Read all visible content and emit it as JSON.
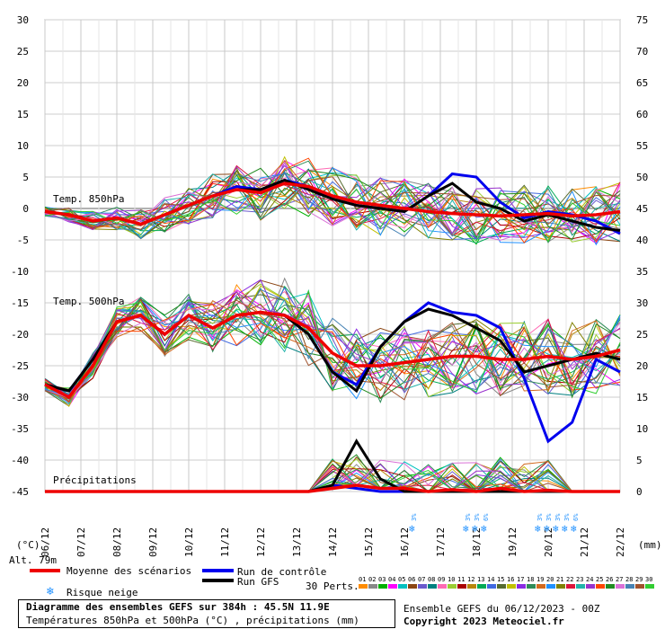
{
  "chart_data": {
    "type": "line",
    "left_axis": {
      "ticks": [
        "30",
        "25",
        "20",
        "15",
        "10",
        "5",
        "0",
        "-5",
        "-10",
        "-15",
        "-20",
        "-25",
        "-30",
        "-35",
        "-40",
        "-45"
      ],
      "ylim": [
        -45,
        30
      ],
      "unit_label": "(°C)"
    },
    "right_axis": {
      "ticks": [
        "75",
        "70",
        "65",
        "60",
        "55",
        "50",
        "45",
        "40",
        "35",
        "30",
        "25",
        "20",
        "15",
        "10",
        "5",
        "0"
      ],
      "ylim": [
        0,
        75
      ],
      "unit_label": "(mm)"
    },
    "x_ticks": [
      "06/12",
      "07/12",
      "08/12",
      "09/12",
      "10/12",
      "11/12",
      "12/12",
      "13/12",
      "14/12",
      "15/12",
      "16/12",
      "17/12",
      "18/12",
      "19/12",
      "20/12",
      "21/12",
      "22/12"
    ],
    "alt_label": "Alt. 79m",
    "section_labels": {
      "t850": "Temp. 850hPa",
      "t500": "Temp. 500hPa",
      "precip": "Précipitations"
    },
    "grid": true,
    "series": [
      {
        "name": "Moyenne des scénarios",
        "color": "#ee0000",
        "t850": [
          -0.5,
          -1,
          -2,
          -1.5,
          -2.5,
          -1,
          0.5,
          2,
          3,
          2.5,
          4,
          3.5,
          2,
          1,
          0.5,
          0,
          -0.5,
          -0.8,
          -1,
          -1.2,
          -1,
          -0.8,
          -1.2,
          -1,
          -0.5
        ],
        "t500": [
          -28,
          -30,
          -25,
          -18,
          -17,
          -20,
          -17,
          -19,
          -17,
          -16.5,
          -17,
          -19,
          -23,
          -25,
          -25,
          -24.5,
          -24,
          -23.5,
          -23.5,
          -24,
          -24,
          -23.5,
          -24,
          -23.5,
          -22.5
        ],
        "precip": [
          0,
          0,
          0,
          0,
          0,
          0,
          0,
          0,
          0,
          0,
          0,
          0,
          0.5,
          1,
          0.5,
          0.5,
          0,
          0.3,
          0,
          0.5,
          0,
          0.2,
          0,
          0,
          0
        ]
      },
      {
        "name": "Run de contrôle",
        "color": "#0000ee",
        "t850": [
          -0.5,
          -1,
          -2,
          -1.5,
          -2.5,
          -1,
          0.5,
          2,
          3.5,
          3,
          4.5,
          3.5,
          1.5,
          0.5,
          0,
          -0.5,
          2,
          5.5,
          5,
          1,
          -1.5,
          -0.5,
          -1,
          -2,
          -4
        ],
        "t500": [
          -28,
          -29,
          -24,
          -18,
          -17,
          -20,
          -17,
          -19,
          -17,
          -16.5,
          -17,
          -20,
          -26,
          -28,
          -22,
          -18,
          -15,
          -16.5,
          -17,
          -19,
          -27,
          -37,
          -34,
          -24,
          -26
        ],
        "precip": [
          0,
          0,
          0,
          0,
          0,
          0,
          0,
          0,
          0,
          0,
          0,
          0,
          1,
          0.5,
          0,
          0,
          0,
          0,
          0,
          0,
          0,
          0,
          0,
          0,
          0
        ]
      },
      {
        "name": "Run GFS",
        "color": "#000000",
        "t850": [
          -0.5,
          -1,
          -2,
          -1.5,
          -2.5,
          -1,
          0.5,
          2,
          3,
          3,
          4.5,
          3,
          1.5,
          0.5,
          0,
          -0.5,
          2,
          4,
          1,
          0,
          -2,
          -1,
          -2,
          -3,
          -3.5
        ],
        "t500": [
          -28,
          -29,
          -24,
          -18,
          -17,
          -20,
          -17,
          -19,
          -17,
          -16.5,
          -17,
          -20,
          -26,
          -29,
          -22,
          -18,
          -16,
          -17,
          -19,
          -21,
          -26,
          -25,
          -24,
          -23,
          -24
        ],
        "precip": [
          0,
          0,
          0,
          0,
          0,
          0,
          0,
          0,
          0,
          0,
          0,
          0,
          1,
          8,
          2,
          0,
          0,
          0,
          0,
          0,
          0,
          0,
          0,
          0,
          0
        ]
      }
    ],
    "perturbation_colors": [
      "#ff8c00",
      "#888888",
      "#00b000",
      "#ff00ff",
      "#00c0c0",
      "#8b4513",
      "#6a5acd",
      "#008080",
      "#ff69b4",
      "#9acd32",
      "#aa0000",
      "#b8860b",
      "#00aa55",
      "#4169e1",
      "#556b2f",
      "#c0c000",
      "#8a2be2",
      "#2e8b57",
      "#d2691e",
      "#1e90ff",
      "#808000",
      "#dc143c",
      "#20b2aa",
      "#9932cc",
      "#ff4500",
      "#228b22",
      "#da70d6",
      "#4682b4",
      "#a0522d",
      "#32cd32"
    ],
    "snow_risk": [
      {
        "x": 10.25,
        "pct": "3%"
      },
      {
        "x": 11.75,
        "pct": "3%"
      },
      {
        "x": 12.0,
        "pct": "3%"
      },
      {
        "x": 12.25,
        "pct": "6%"
      },
      {
        "x": 13.75,
        "pct": "3%"
      },
      {
        "x": 14.0,
        "pct": "3%"
      },
      {
        "x": 14.25,
        "pct": "3%"
      },
      {
        "x": 14.5,
        "pct": "3%"
      },
      {
        "x": 14.75,
        "pct": "6%"
      }
    ]
  },
  "legend": {
    "mean": "Moyenne des scénarios",
    "control": "Run de contrôle",
    "gfs": "Run GFS",
    "snow": "Risque neige",
    "perts_label": "30 Perts.",
    "pert_numbers": [
      "01",
      "02",
      "03",
      "04",
      "05",
      "06",
      "07",
      "08",
      "09",
      "10",
      "11",
      "12",
      "13",
      "14",
      "15",
      "16",
      "17",
      "18",
      "19",
      "20",
      "21",
      "22",
      "23",
      "24",
      "25",
      "26",
      "27",
      "28",
      "29",
      "30"
    ]
  },
  "footer": {
    "title": "Diagramme des ensembles GEFS sur 384h : 45.5N 11.9E",
    "subtitle": "Températures 850hPa et 500hPa (°C) , précipitations (mm)",
    "run_info": "Ensemble GEFS du 06/12/2023 - 00Z",
    "copyright": "Copyright 2023 Meteociel.fr"
  }
}
